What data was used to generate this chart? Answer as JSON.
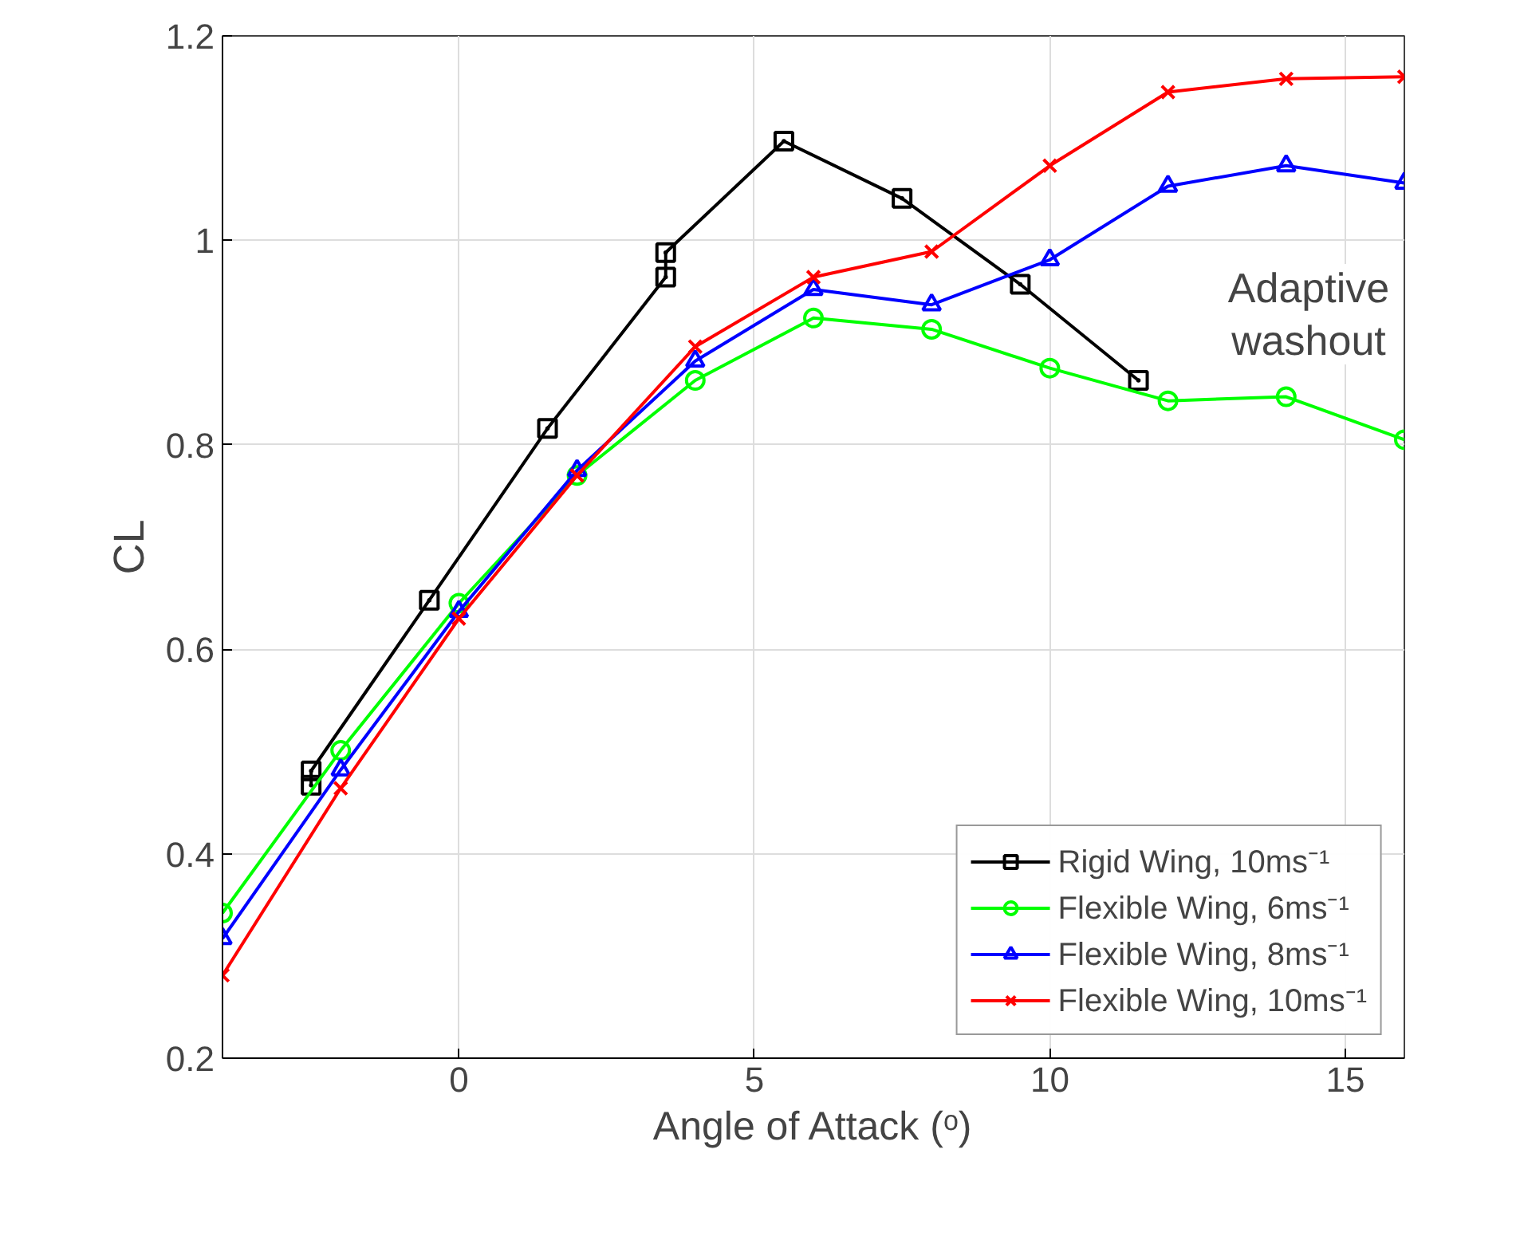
{
  "chart_data": {
    "type": "line",
    "xlabel": "Angle of Attack (ᵒ)",
    "ylabel": "CL",
    "xlim": [
      -4,
      16
    ],
    "xticks": [
      0,
      5,
      10,
      15
    ],
    "ylim": [
      0.2,
      1.2
    ],
    "yticks": [
      0.2,
      0.4,
      0.6,
      0.8,
      1,
      1.2
    ],
    "grid": true,
    "legend": "bottom right",
    "annotations": [
      "Adaptive\nwashout"
    ],
    "series": [
      {
        "name": "Rigid Wing, 10ms⁻¹",
        "color": "#000000",
        "marker": "square",
        "x": [
          -2.5,
          -2.5,
          -0.5,
          1.5,
          3.5,
          3.5,
          5.5,
          7.5,
          9.5,
          11.5
        ],
        "values": [
          0.467,
          0.481,
          0.648,
          0.816,
          0.964,
          0.988,
          1.097,
          1.041,
          0.957,
          0.863
        ]
      },
      {
        "name": "Flexible Wing, 6ms⁻¹",
        "color": "#00ff00",
        "marker": "circle",
        "x": [
          -4,
          -2,
          0,
          2,
          4,
          6,
          8,
          10,
          12,
          14,
          16
        ],
        "values": [
          0.342,
          0.501,
          0.645,
          0.77,
          0.863,
          0.924,
          0.913,
          0.875,
          0.843,
          0.847,
          0.805
        ]
      },
      {
        "name": "Flexible Wing, 8ms⁻¹",
        "color": "#0000ff",
        "marker": "triangle",
        "x": [
          -4,
          -2,
          0,
          2,
          4,
          6,
          8,
          10,
          12,
          14,
          16
        ],
        "values": [
          0.317,
          0.482,
          0.637,
          0.775,
          0.882,
          0.952,
          0.937,
          0.981,
          1.053,
          1.073,
          1.056
        ]
      },
      {
        "name": "Flexible Wing, 10ms⁻¹",
        "color": "#ff0000",
        "marker": "cross",
        "x": [
          -4,
          -2,
          0,
          2,
          4,
          6,
          8,
          10,
          12,
          14,
          16
        ],
        "values": [
          0.281,
          0.464,
          0.63,
          0.77,
          0.896,
          0.964,
          0.989,
          1.073,
          1.145,
          1.158,
          1.16
        ]
      }
    ]
  }
}
